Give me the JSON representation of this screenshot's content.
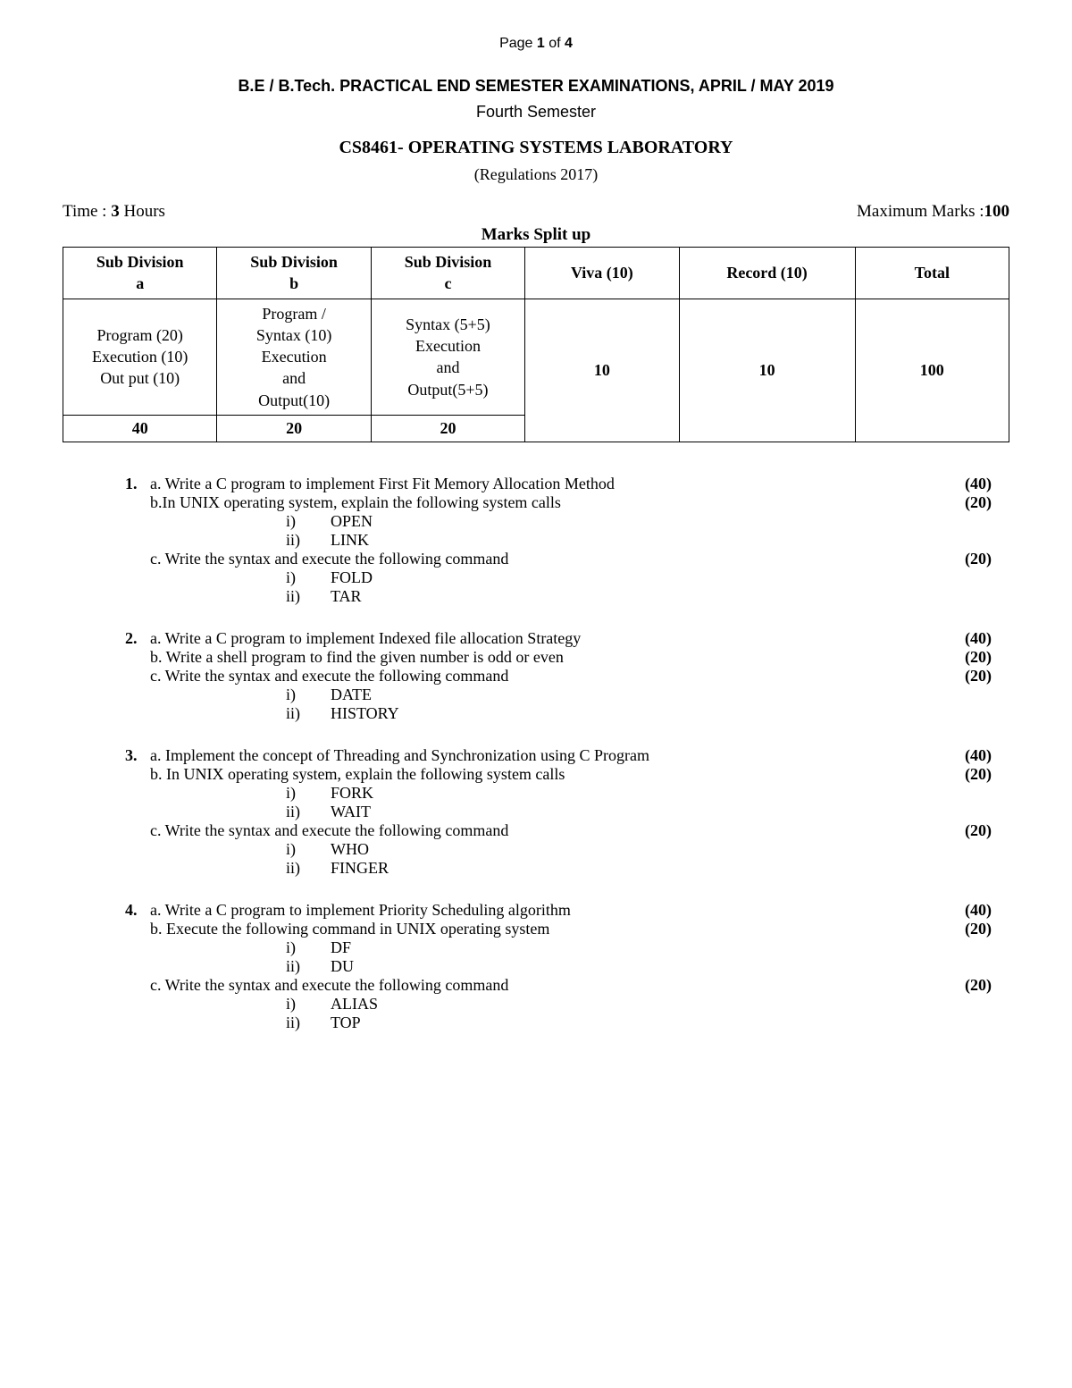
{
  "page_label": "Page ",
  "page_current": "1",
  "page_of": " of ",
  "page_total": "4",
  "header": "B.E / B.Tech. PRACTICAL END SEMESTER EXAMINATIONS, APRIL / MAY 2019",
  "semester": "Fourth Semester",
  "course": "CS8461- OPERATING SYSTEMS LABORATORY",
  "regulations": "(Regulations 2017)",
  "time_label": "Time : ",
  "time_value": "3",
  "time_unit": " Hours",
  "marks_label": "Maximum Marks :",
  "marks_value": "100",
  "marks_split_title": "Marks Split up",
  "table": {
    "headers": {
      "h1a": "Sub Division",
      "h1b": "a",
      "h2a": "Sub Division",
      "h2b": "b",
      "h3a": "Sub Division",
      "h3b": "c",
      "h4": "Viva (10)",
      "h5": "Record (10)",
      "h6": "Total"
    },
    "row1": {
      "c1a": "Program (20)",
      "c1b": "Execution (10)",
      "c1c": "Out put (10)",
      "c2a": "Program /",
      "c2b": "Syntax (10)",
      "c2c": "Execution",
      "c2d": "and",
      "c2e": "Output(10)",
      "c3a": "Syntax (5+5)",
      "c3b": "Execution",
      "c3c": "and",
      "c3d": "Output(5+5)",
      "c4": "10",
      "c5": "10",
      "c6": "100"
    },
    "row2": {
      "c1": "40",
      "c2": "20",
      "c3": "20"
    }
  },
  "q": [
    {
      "num": "1.",
      "lines": [
        {
          "t": "a. Write a C program to implement First Fit Memory Allocation Method",
          "m": "(40)"
        },
        {
          "t": "b.In UNIX operating system, explain the following system calls",
          "m": "(20)"
        }
      ],
      "sub1": [
        {
          "r": "i)",
          "v": "OPEN"
        },
        {
          "r": "ii)",
          "v": "LINK"
        }
      ],
      "lines2": [
        {
          "t": "c. Write the syntax and execute the following command",
          "m": "(20)"
        }
      ],
      "sub2": [
        {
          "r": "i)",
          "v": "FOLD"
        },
        {
          "r": "ii)",
          "v": "TAR"
        }
      ]
    },
    {
      "num": "2.",
      "lines": [
        {
          "t": "a. Write a C program to implement Indexed file allocation Strategy",
          "m": "(40)"
        },
        {
          "t": "b. Write a shell program to find the given number is odd or even",
          "m": "(20)"
        },
        {
          "t": "c. Write the syntax and execute the following command",
          "m": "(20)"
        }
      ],
      "sub1": [
        {
          "r": "i)",
          "v": "DATE"
        },
        {
          "r": "ii)",
          "v": "HISTORY"
        }
      ]
    },
    {
      "num": "3.",
      "lines": [
        {
          "t": "a. Implement the concept of Threading and Synchronization using C Program",
          "m": "(40)"
        },
        {
          "t": "b. In UNIX operating system, explain the following system calls",
          "m": "(20)"
        }
      ],
      "sub1": [
        {
          "r": "i)",
          "v": "FORK"
        },
        {
          "r": "ii)",
          "v": "WAIT"
        }
      ],
      "lines2": [
        {
          "t": "c. Write the syntax and execute the following command",
          "m": "(20)"
        }
      ],
      "sub2": [
        {
          "r": "i)",
          "v": "WHO"
        },
        {
          "r": "ii)",
          "v": "FINGER"
        }
      ]
    },
    {
      "num": "4.",
      "lines": [
        {
          "t": "a. Write a C program to implement Priority Scheduling algorithm",
          "m": "(40)"
        },
        {
          "t": "b. Execute the following command in UNIX operating system",
          "m": "(20)"
        }
      ],
      "sub1": [
        {
          "r": "i)",
          "v": "DF"
        },
        {
          "r": "ii)",
          "v": "DU"
        }
      ],
      "lines2": [
        {
          "t": "c. Write the syntax and execute the following command",
          "m": "(20)"
        }
      ],
      "sub2": [
        {
          "r": "i)",
          "v": "ALIAS"
        },
        {
          "r": "ii)",
          "v": "TOP"
        }
      ]
    }
  ]
}
